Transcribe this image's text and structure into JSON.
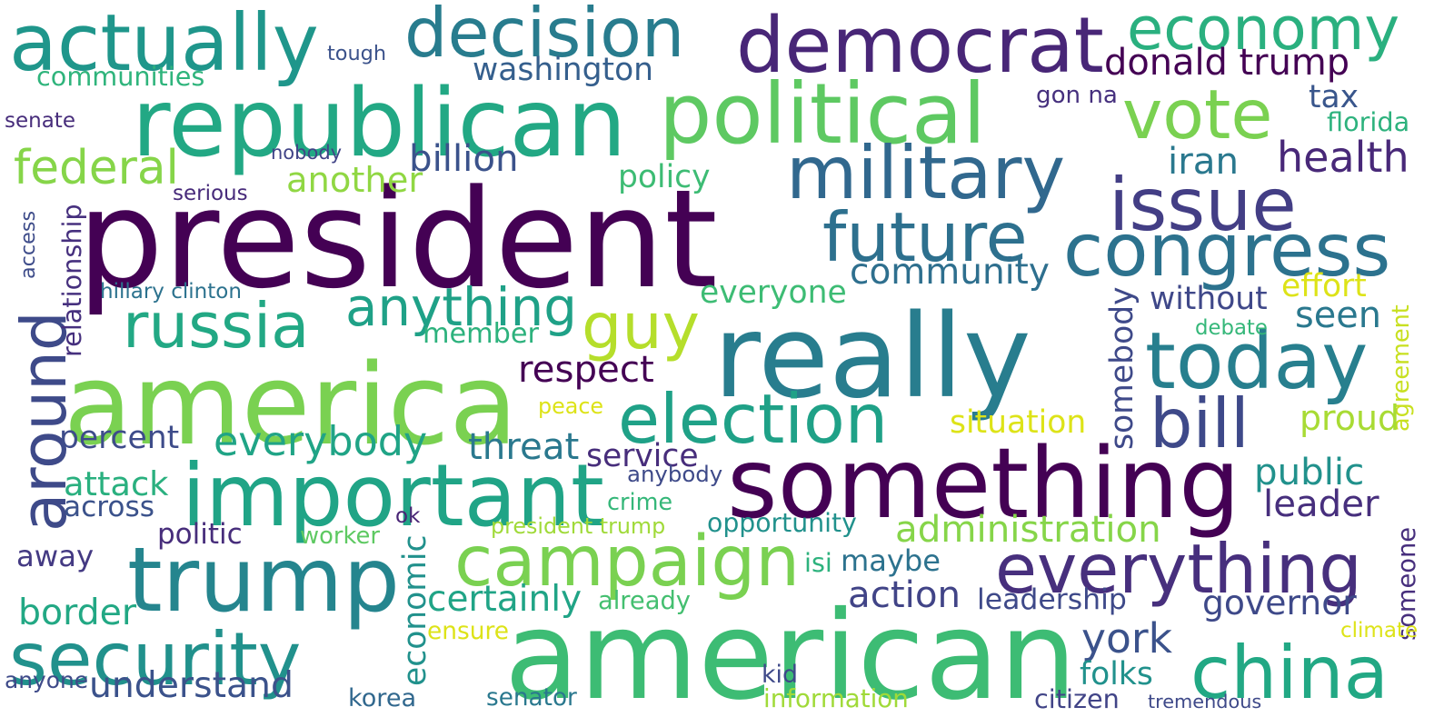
{
  "words": [
    {
      "text": "president",
      "color": "#440154"
    },
    {
      "text": "american",
      "color": "#3dbc74"
    },
    {
      "text": "america",
      "color": "#7ad151"
    },
    {
      "text": "really",
      "color": "#287d8e"
    },
    {
      "text": "something",
      "color": "#440154"
    },
    {
      "text": "republican",
      "color": "#22a884"
    },
    {
      "text": "democrat",
      "color": "#482677"
    },
    {
      "text": "political",
      "color": "#5ec962"
    },
    {
      "text": "important",
      "color": "#20a486"
    },
    {
      "text": "trump",
      "color": "#25858e"
    },
    {
      "text": "actually",
      "color": "#1f968b"
    },
    {
      "text": "decision",
      "color": "#287c8e"
    },
    {
      "text": "economy",
      "color": "#2ab07f"
    },
    {
      "text": "military",
      "color": "#31688e"
    },
    {
      "text": "issue",
      "color": "#433e85"
    },
    {
      "text": "congress",
      "color": "#2c728e"
    },
    {
      "text": "vote",
      "color": "#7ad151"
    },
    {
      "text": "future",
      "color": "#2d708e"
    },
    {
      "text": "today",
      "color": "#277f8e"
    },
    {
      "text": "campaign",
      "color": "#7ad151"
    },
    {
      "text": "election",
      "color": "#1fa187"
    },
    {
      "text": "everything",
      "color": "#472f7d"
    },
    {
      "text": "security",
      "color": "#21918c"
    },
    {
      "text": "china",
      "color": "#22a884"
    },
    {
      "text": "bill",
      "color": "#3e4989"
    },
    {
      "text": "russia",
      "color": "#22a884"
    },
    {
      "text": "anything",
      "color": "#1fa187"
    },
    {
      "text": "guy",
      "color": "#b5de2b"
    },
    {
      "text": "around",
      "color": "#3e4a89"
    },
    {
      "text": "federal",
      "color": "#86d549"
    },
    {
      "text": "donald trump",
      "color": "#440154"
    },
    {
      "text": "washington",
      "color": "#355f8d"
    },
    {
      "text": "communities",
      "color": "#2fb47c"
    },
    {
      "text": "tough",
      "color": "#3b528b"
    },
    {
      "text": "gon na",
      "color": "#46307e"
    },
    {
      "text": "tax",
      "color": "#39568c"
    },
    {
      "text": "florida",
      "color": "#2db27d"
    },
    {
      "text": "senate",
      "color": "#472d7b"
    },
    {
      "text": "nobody",
      "color": "#414487"
    },
    {
      "text": "billion",
      "color": "#3b528b"
    },
    {
      "text": "policy",
      "color": "#3dbc74"
    },
    {
      "text": "another",
      "color": "#90d743"
    },
    {
      "text": "iran",
      "color": "#2a788e"
    },
    {
      "text": "health",
      "color": "#482878"
    },
    {
      "text": "serious",
      "color": "#472a7a"
    },
    {
      "text": "relationship",
      "color": "#46307e"
    },
    {
      "text": "access",
      "color": "#3e4c8a"
    },
    {
      "text": "hillary clinton",
      "color": "#2c728e"
    },
    {
      "text": "community",
      "color": "#2e6f8e"
    },
    {
      "text": "everyone",
      "color": "#3dbc74"
    },
    {
      "text": "effort",
      "color": "#dde318"
    },
    {
      "text": "without",
      "color": "#3f4889"
    },
    {
      "text": "somebody",
      "color": "#3e4989"
    },
    {
      "text": "seen",
      "color": "#2a788e"
    },
    {
      "text": "agreement",
      "color": "#c8e020"
    },
    {
      "text": "debate",
      "color": "#35b779"
    },
    {
      "text": "member",
      "color": "#2db27d"
    },
    {
      "text": "respect",
      "color": "#440154"
    },
    {
      "text": "percent",
      "color": "#3e4c8a"
    },
    {
      "text": "everybody",
      "color": "#20a486"
    },
    {
      "text": "threat",
      "color": "#2a788e"
    },
    {
      "text": "service",
      "color": "#472d7b"
    },
    {
      "text": "peace",
      "color": "#dde318"
    },
    {
      "text": "situation",
      "color": "#dde318"
    },
    {
      "text": "proud",
      "color": "#a8db34"
    },
    {
      "text": "public",
      "color": "#21918c"
    },
    {
      "text": "leader",
      "color": "#472f7d"
    },
    {
      "text": "attack",
      "color": "#2ab07f"
    },
    {
      "text": "across",
      "color": "#3b528b"
    },
    {
      "text": "anybody",
      "color": "#3e4a89"
    },
    {
      "text": "crime",
      "color": "#35b779"
    },
    {
      "text": "administration",
      "color": "#86d549"
    },
    {
      "text": "ok",
      "color": "#482475"
    },
    {
      "text": "economic",
      "color": "#21918c"
    },
    {
      "text": "president trump",
      "color": "#a0da39"
    },
    {
      "text": "opportunity",
      "color": "#21918c"
    },
    {
      "text": "politic",
      "color": "#472d7b"
    },
    {
      "text": "worker",
      "color": "#5ec962"
    },
    {
      "text": "away",
      "color": "#443a83"
    },
    {
      "text": "isi",
      "color": "#2db27d"
    },
    {
      "text": "maybe",
      "color": "#2c728e"
    },
    {
      "text": "someone",
      "color": "#472f7d"
    },
    {
      "text": "border",
      "color": "#22a884"
    },
    {
      "text": "certainly",
      "color": "#20a486"
    },
    {
      "text": "already",
      "color": "#44bf70"
    },
    {
      "text": "action",
      "color": "#414487"
    },
    {
      "text": "leadership",
      "color": "#3e4989"
    },
    {
      "text": "governor",
      "color": "#3e4989"
    },
    {
      "text": "york",
      "color": "#3b528b"
    },
    {
      "text": "ensure",
      "color": "#dde318"
    },
    {
      "text": "climate",
      "color": "#dde318"
    },
    {
      "text": "understand",
      "color": "#3b528b"
    },
    {
      "text": "anyone",
      "color": "#3e4a89"
    },
    {
      "text": "folks",
      "color": "#21918c"
    },
    {
      "text": "kid",
      "color": "#3e4989"
    },
    {
      "text": "korea",
      "color": "#31688e"
    },
    {
      "text": "senator",
      "color": "#2a788e"
    },
    {
      "text": "information",
      "color": "#a0da39"
    },
    {
      "text": "citizen",
      "color": "#414487"
    },
    {
      "text": "tremendous",
      "color": "#3e4989"
    }
  ]
}
